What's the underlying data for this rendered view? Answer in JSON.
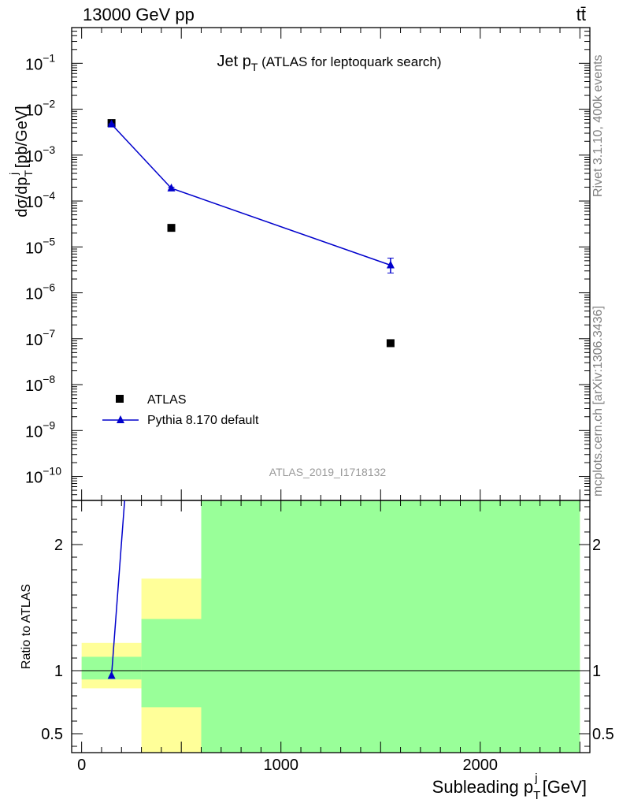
{
  "header": {
    "left_label": "13000 GeV pp",
    "right_label": "tt̄"
  },
  "side_labels": {
    "rivet": "Rivet 3.1.10,  400k events",
    "mcplots": "mcplots.cern.ch [arXiv:1306.3436]"
  },
  "chart_data": [
    {
      "type": "scatter",
      "panel": "main",
      "title_main": "Jet p",
      "title_sub": "T",
      "title_rest": " (ATLAS for leptoquark search)",
      "analysis_label": "ATLAS_2019_I1718132",
      "ylabel": {
        "main": "dσ/dp",
        "sub": "T",
        "sup": "j",
        "rest": " [pb/GeV]"
      },
      "yscale": "log",
      "ylim": [
        3e-11,
        0.6
      ],
      "xlim": [
        -50,
        2550
      ],
      "y_ticks": [
        {
          "value": 1e-10,
          "label_base": "10",
          "label_exp": "−10"
        },
        {
          "value": 1e-09,
          "label_base": "10",
          "label_exp": "−9"
        },
        {
          "value": 1e-08,
          "label_base": "10",
          "label_exp": "−8"
        },
        {
          "value": 1e-07,
          "label_base": "10",
          "label_exp": "−7"
        },
        {
          "value": 1e-06,
          "label_base": "10",
          "label_exp": "−6"
        },
        {
          "value": 1e-05,
          "label_base": "10",
          "label_exp": "−5"
        },
        {
          "value": 0.0001,
          "label_base": "10",
          "label_exp": "−4"
        },
        {
          "value": 0.001,
          "label_base": "10",
          "label_exp": "−3"
        },
        {
          "value": 0.01,
          "label_base": "10",
          "label_exp": "−2"
        },
        {
          "value": 0.1,
          "label_base": "10",
          "label_exp": "−1"
        }
      ],
      "series": [
        {
          "name": "ATLAS",
          "marker": "square",
          "color": "#000000",
          "points": [
            {
              "x": 150,
              "xlow": 0,
              "xhigh": 300,
              "y": 0.005
            },
            {
              "x": 450,
              "xlow": 300,
              "xhigh": 600,
              "y": 2.6e-05
            },
            {
              "x": 1550,
              "xlow": 600,
              "xhigh": 2500,
              "y": 8e-08
            }
          ]
        },
        {
          "name": "Pythia 8.170 default",
          "marker": "triangle",
          "color": "#0000cc",
          "points": [
            {
              "x": 150,
              "y": 0.0047,
              "ylow": 0.0046,
              "yhigh": 0.0048
            },
            {
              "x": 450,
              "y": 0.00019,
              "ylow": 0.00018,
              "yhigh": 0.0002
            },
            {
              "x": 1550,
              "y": 4e-06,
              "ylow": 2.7e-06,
              "yhigh": 5.7e-06
            }
          ]
        }
      ],
      "legend_placement": "lower-left"
    },
    {
      "type": "area",
      "panel": "ratio",
      "ylabel": "Ratio to ATLAS",
      "xlabel": {
        "main": "Subleading p",
        "sub": "T",
        "sup": "j",
        "rest": " [GeV]"
      },
      "ylim": [
        0.35,
        2.35
      ],
      "xlim": [
        -50,
        2550
      ],
      "y_ticks": [
        {
          "value": 0.5,
          "label": "0.5"
        },
        {
          "value": 1,
          "label": "1"
        },
        {
          "value": 2,
          "label": "2"
        }
      ],
      "x_ticks": [
        {
          "value": 0,
          "label": "0"
        },
        {
          "value": 1000,
          "label": "1000"
        },
        {
          "value": 2000,
          "label": "2000"
        }
      ],
      "bands": [
        {
          "xlow": 0,
          "xhigh": 300,
          "yellow": [
            0.86,
            1.22
          ],
          "green": [
            0.93,
            1.11
          ]
        },
        {
          "xlow": 300,
          "xhigh": 600,
          "yellow": [
            0.35,
            1.73
          ],
          "green": [
            0.71,
            1.41
          ]
        },
        {
          "xlow": 600,
          "xhigh": 2500,
          "yellow": [
            0.35,
            2.35
          ],
          "green": [
            0.35,
            2.35
          ]
        }
      ],
      "colors": {
        "yellow": "#ffff99",
        "green": "#99ff99"
      },
      "ratio_series": {
        "name": "Pythia 8.170 default",
        "color": "#0000cc",
        "points": [
          {
            "x": 150,
            "y": 0.96
          },
          {
            "x": 450,
            "y": 7.3
          }
        ]
      }
    }
  ]
}
